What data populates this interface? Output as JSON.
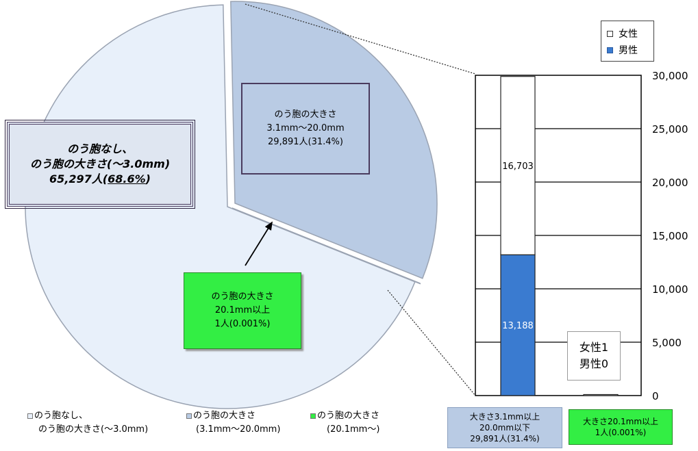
{
  "chart_data": [
    {
      "type": "pie",
      "slices": [
        {
          "label": "のう胞なし、のう胞の大きさ(～3.0mm)",
          "value": 65297,
          "percent": "68.6%",
          "color": "#e8f0fa"
        },
        {
          "label": "のう胞の大きさ(3.1mm～20.0mm)",
          "value": 29891,
          "percent": "31.4%",
          "color": "#b9cbe4"
        },
        {
          "label": "のう胞の大きさ(20.1mm～)",
          "value": 1,
          "percent": "0.001%",
          "color": "#33ee44"
        }
      ],
      "legend": {
        "placement": "bottom",
        "items": [
          {
            "line1": "のう胞なし、",
            "line2": "のう胞の大きさ(～3.0mm)",
            "color": "#e8f0fa"
          },
          {
            "line1": "のう胞の大きさ",
            "line2": "(3.1mm～20.0mm)",
            "color": "#b9cbe4"
          },
          {
            "line1": "のう胞の大きさ",
            "line2": "(20.1mm～)",
            "color": "#33ee44"
          }
        ]
      },
      "callouts": {
        "none": {
          "line1": "のう胞なし、",
          "line2": "のう胞の大きさ(～3.0mm)",
          "count": "65,297人",
          "pct_open": "(",
          "pct": "68.6%",
          "pct_close": ")"
        },
        "mid": {
          "line1": "のう胞の大きさ",
          "line2": "3.1mm～20.0mm",
          "line3": "29,891人(31.4%)"
        },
        "large": {
          "line1": "のう胞の大きさ",
          "line2": "20.1mm以上",
          "line3": "1人(0.001%)"
        }
      }
    },
    {
      "type": "bar",
      "stacked": true,
      "categories": [
        "大きさ3.1mm以上20.0mm以下",
        "大きさ20.1mm以上"
      ],
      "category_captions": [
        {
          "line1": "大きさ3.1mm以上",
          "line2": "20.0mm以下",
          "line3": "29,891人(31.4%)"
        },
        {
          "line1": "大きさ20.1mm以上",
          "line2": "1人(0.001%)"
        }
      ],
      "series": [
        {
          "name": "男性",
          "values": [
            13188,
            0
          ],
          "color": "#3a7bd0",
          "value_labels": [
            "13,188",
            ""
          ]
        },
        {
          "name": "女性",
          "values": [
            16703,
            1
          ],
          "color": "#ffffff",
          "value_labels": [
            "16,703",
            ""
          ]
        }
      ],
      "ylim": [
        0,
        30000
      ],
      "yticks": [
        0,
        5000,
        10000,
        15000,
        20000,
        25000,
        30000
      ],
      "ytick_labels": [
        "0",
        "5,000",
        "10,000",
        "15,000",
        "20,000",
        "25,000",
        "30,000"
      ],
      "grid": true,
      "legend": {
        "placement": "top-right",
        "items": [
          {
            "label": "女性",
            "color": "#ffffff"
          },
          {
            "label": "男性",
            "color": "#3a7bd0"
          }
        ]
      },
      "annotation": {
        "line1": "女性1",
        "line2": "男性0"
      }
    }
  ]
}
